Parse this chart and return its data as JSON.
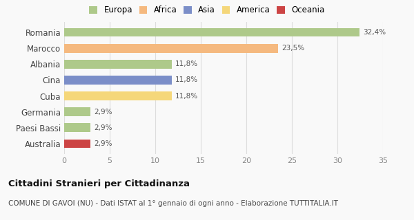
{
  "categories": [
    "Romania",
    "Marocco",
    "Albania",
    "Cina",
    "Cuba",
    "Germania",
    "Paesi Bassi",
    "Australia"
  ],
  "values": [
    32.4,
    23.5,
    11.8,
    11.8,
    11.8,
    2.9,
    2.9,
    2.9
  ],
  "labels": [
    "32,4%",
    "23,5%",
    "11,8%",
    "11,8%",
    "11,8%",
    "2,9%",
    "2,9%",
    "2,9%"
  ],
  "colors": [
    "#aec98a",
    "#f5b97f",
    "#aec98a",
    "#7b8ec8",
    "#f5d77a",
    "#aec98a",
    "#aec98a",
    "#cc4444"
  ],
  "legend": [
    {
      "label": "Europa",
      "color": "#aec98a"
    },
    {
      "label": "Africa",
      "color": "#f5b97f"
    },
    {
      "label": "Asia",
      "color": "#7b8ec8"
    },
    {
      "label": "America",
      "color": "#f5d77a"
    },
    {
      "label": "Oceania",
      "color": "#cc4444"
    }
  ],
  "xlim": [
    0,
    35
  ],
  "xticks": [
    0,
    5,
    10,
    15,
    20,
    25,
    30,
    35
  ],
  "title": "Cittadini Stranieri per Cittadinanza",
  "subtitle": "COMUNE DI GAVOI (NU) - Dati ISTAT al 1° gennaio di ogni anno - Elaborazione TUTTITALIA.IT",
  "bg_color": "#f9f9f9",
  "grid_color": "#dddddd"
}
